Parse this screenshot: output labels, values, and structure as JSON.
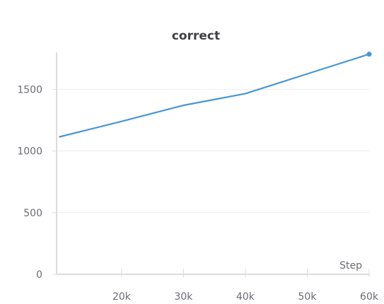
{
  "chart_data": {
    "type": "line",
    "title": "correct",
    "xlabel": "Step",
    "ylabel": "",
    "xlim": [
      0,
      60000
    ],
    "ylim": [
      0,
      1800
    ],
    "x_ticks": [
      20000,
      30000,
      40000,
      50000,
      60000
    ],
    "x_tick_labels": [
      "20k",
      "30k",
      "40k",
      "50k",
      "60k"
    ],
    "y_ticks": [
      0,
      500,
      1000,
      1500
    ],
    "y_tick_labels": [
      "0",
      "500",
      "1000",
      "1500"
    ],
    "grid": true,
    "series": [
      {
        "color": "#4796d6",
        "x": [
          10000,
          20000,
          30000,
          40000,
          50000,
          60000
        ],
        "y": [
          1115,
          1240,
          1370,
          1465,
          1625,
          1785
        ]
      }
    ]
  }
}
